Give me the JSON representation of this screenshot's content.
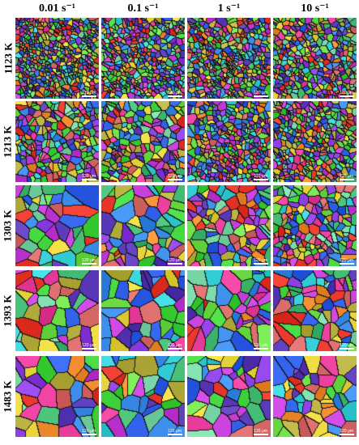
{
  "columns": [
    {
      "label": "0.01 s⁻¹"
    },
    {
      "label": "0.1 s⁻¹"
    },
    {
      "label": "1 s⁻¹"
    },
    {
      "label": "10 s⁻¹"
    }
  ],
  "rows": [
    {
      "label": "1123 K"
    },
    {
      "label": "1213 K"
    },
    {
      "label": "1303 K"
    },
    {
      "label": "1393 K"
    },
    {
      "label": "1483 K"
    }
  ],
  "scale_bar_label": "120 μm",
  "grain_colors": [
    "#e8362b",
    "#2f5fe8",
    "#3fd23a",
    "#c43cd8",
    "#e6d43a",
    "#38d0d8",
    "#f08a2e",
    "#8a3ce0",
    "#e83c9a",
    "#6fe04a",
    "#3a8ae8",
    "#d86a6a",
    "#7ad8a8",
    "#b8b040",
    "#5a3ab8",
    "#40b870"
  ]
}
